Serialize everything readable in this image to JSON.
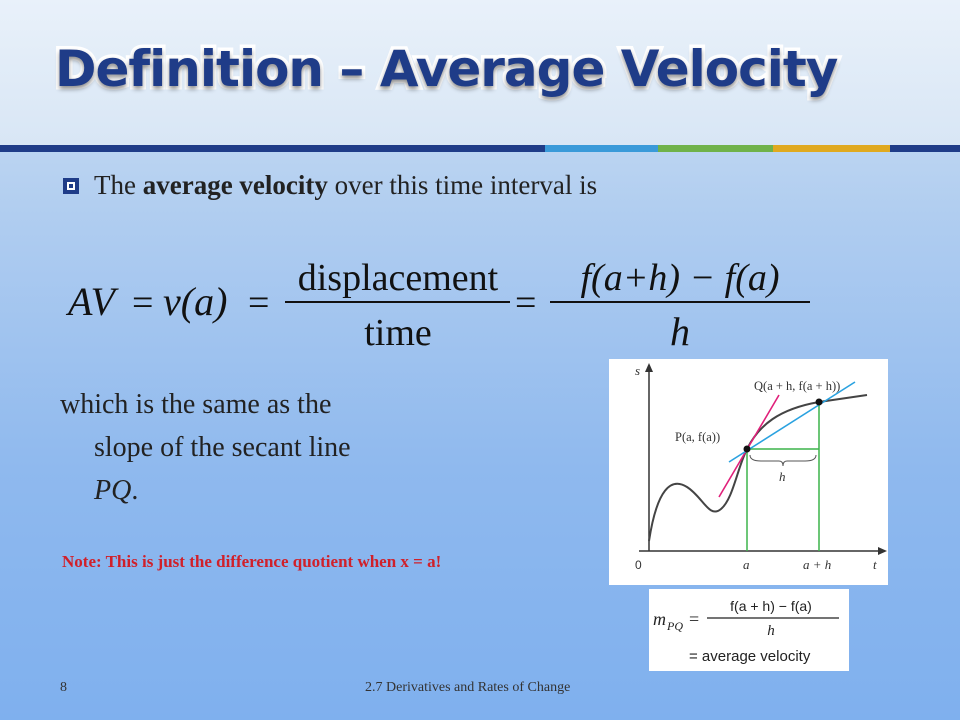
{
  "slide": {
    "title": "Definition – Average Velocity",
    "bullet": {
      "prefix": "The ",
      "bold": "average velocity",
      "suffix": " over this time interval is"
    },
    "formula": {
      "lhs": "AV",
      "eq": "=",
      "v_of_a": "v(a)",
      "num1": "displacement",
      "den1": "time",
      "num2": "f(a+h) − f(a)",
      "den2": "h"
    },
    "paragraph": {
      "line1": "which is the same as the",
      "line2": "slope of the secant line",
      "line3_italic": "PQ",
      "line3_end": "."
    },
    "note": "Note: This is just the difference quotient when x = a!",
    "graph": {
      "axis_s": "s",
      "axis_t": "t",
      "origin": "0",
      "label_a": "a",
      "label_a_plus_h": "a + h",
      "label_h": "h",
      "label_P": "P(a, f(a))",
      "label_Q": "Q(a + h, f(a + h))"
    },
    "mpq": {
      "lhs": "m",
      "sub": "PQ",
      "numerator": "f(a + h) − f(a)",
      "denominator": "h",
      "line2": "= average velocity"
    },
    "footer": {
      "page_number": "8",
      "title": "2.7 Derivatives and Rates of Change"
    },
    "colors": {
      "title_fill": "#1f3c88",
      "stripe_colors": [
        "#1f3c88",
        "#3a9ad9",
        "#6fb24a",
        "#e0a91f",
        "#1f3c88"
      ],
      "note": "#d0202a",
      "curve": "#444444",
      "tangent": "#e0207a",
      "secant": "#2aa2e0",
      "guides": "#3cb44a"
    }
  }
}
